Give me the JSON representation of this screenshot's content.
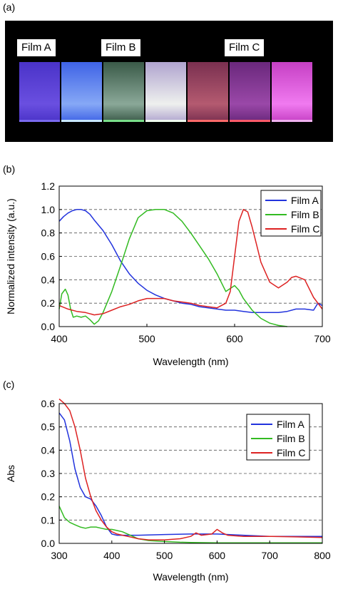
{
  "panels": {
    "a": {
      "label": "(a)"
    },
    "b": {
      "label": "(b)"
    },
    "c": {
      "label": "(c)"
    }
  },
  "photo": {
    "film_labels": [
      "Film A",
      "Film B",
      "Film C"
    ],
    "swatch_colors": [
      [
        "#4a33c8",
        "#6a4fe0"
      ],
      [
        "#3f63e6",
        "#86a8f6"
      ],
      [
        "#3a5a48",
        "#8aa898"
      ],
      [
        "#b0a4cf",
        "#eef0ee"
      ],
      [
        "#7a3050",
        "#b45a70"
      ],
      [
        "#6a287c",
        "#9a48a8"
      ],
      [
        "#c640c4",
        "#f07af0"
      ]
    ],
    "swatch_edge_colors": [
      "#7a6af0",
      "#c8e8ff",
      "#7adf8a",
      "#f0fff0",
      "#ff6a6a",
      "#ff5a6a",
      "#f0b0f0"
    ]
  },
  "chart_data": [
    {
      "type": "line",
      "xlabel": "Wavelength (nm)",
      "ylabel": "Normalized intensity (a.u.)",
      "xlim": [
        400,
        700
      ],
      "ylim": [
        0,
        1.2
      ],
      "xticks": [
        400,
        500,
        600,
        700
      ],
      "yticks": [
        0,
        0.2,
        0.4,
        0.6,
        0.8,
        1.0,
        1.2
      ],
      "ytick_labels": [
        "0.0",
        "0.2",
        "0.4",
        "0.6",
        "0.8",
        "1.0",
        "1.2"
      ],
      "grid": "horizontal dashed",
      "legend_position": "top-right",
      "series": [
        {
          "name": "Film A",
          "color": "#2233dd",
          "x": [
            400,
            405,
            410,
            415,
            420,
            425,
            430,
            435,
            440,
            450,
            460,
            470,
            480,
            490,
            500,
            510,
            520,
            530,
            540,
            550,
            560,
            570,
            580,
            590,
            600,
            610,
            620,
            630,
            640,
            650,
            660,
            670,
            680,
            690,
            695,
            700
          ],
          "y": [
            0.9,
            0.94,
            0.97,
            0.99,
            1.0,
            1.0,
            0.99,
            0.96,
            0.91,
            0.82,
            0.7,
            0.56,
            0.45,
            0.37,
            0.31,
            0.27,
            0.24,
            0.22,
            0.2,
            0.19,
            0.17,
            0.16,
            0.15,
            0.14,
            0.14,
            0.13,
            0.12,
            0.12,
            0.12,
            0.12,
            0.13,
            0.15,
            0.15,
            0.14,
            0.2,
            0.18
          ]
        },
        {
          "name": "Film B",
          "color": "#33bb22",
          "x": [
            400,
            403,
            407,
            410,
            413,
            416,
            420,
            425,
            430,
            435,
            440,
            445,
            450,
            460,
            470,
            480,
            490,
            500,
            510,
            520,
            530,
            540,
            550,
            560,
            570,
            580,
            590,
            600,
            605,
            610,
            620,
            630,
            640,
            650,
            660
          ],
          "y": [
            0.15,
            0.28,
            0.32,
            0.27,
            0.15,
            0.08,
            0.09,
            0.08,
            0.09,
            0.06,
            0.02,
            0.05,
            0.12,
            0.3,
            0.52,
            0.75,
            0.93,
            0.99,
            1.0,
            1.0,
            0.97,
            0.9,
            0.8,
            0.69,
            0.58,
            0.45,
            0.3,
            0.35,
            0.31,
            0.24,
            0.14,
            0.07,
            0.03,
            0.01,
            0.0
          ]
        },
        {
          "name": "Film C",
          "color": "#dd2222",
          "x": [
            400,
            410,
            420,
            430,
            440,
            450,
            460,
            470,
            480,
            490,
            500,
            510,
            520,
            530,
            540,
            550,
            560,
            570,
            580,
            590,
            595,
            600,
            605,
            610,
            615,
            620,
            625,
            630,
            640,
            650,
            660,
            665,
            670,
            680,
            690,
            700
          ],
          "y": [
            0.18,
            0.15,
            0.13,
            0.12,
            0.1,
            0.11,
            0.14,
            0.17,
            0.19,
            0.22,
            0.24,
            0.24,
            0.24,
            0.22,
            0.21,
            0.2,
            0.18,
            0.17,
            0.16,
            0.2,
            0.3,
            0.6,
            0.9,
            1.0,
            0.98,
            0.85,
            0.7,
            0.55,
            0.38,
            0.33,
            0.38,
            0.42,
            0.43,
            0.4,
            0.25,
            0.15
          ]
        }
      ]
    },
    {
      "type": "line",
      "xlabel": "Wavelength (nm)",
      "ylabel": "Abs",
      "xlim": [
        300,
        800
      ],
      "ylim": [
        0,
        0.6
      ],
      "xticks": [
        300,
        400,
        500,
        600,
        700,
        800
      ],
      "yticks": [
        0,
        0.1,
        0.2,
        0.3,
        0.4,
        0.5,
        0.6
      ],
      "ytick_labels": [
        "0.0",
        "0.1",
        "0.2",
        "0.3",
        "0.4",
        "0.5",
        "0.6"
      ],
      "grid": "horizontal dashed",
      "legend_position": "top-right",
      "series": [
        {
          "name": "Film A",
          "color": "#2233dd",
          "x": [
            300,
            310,
            320,
            330,
            340,
            350,
            360,
            370,
            380,
            390,
            400,
            410,
            420,
            450,
            500,
            550,
            600,
            650,
            700,
            750,
            800
          ],
          "y": [
            0.56,
            0.53,
            0.44,
            0.32,
            0.24,
            0.2,
            0.19,
            0.16,
            0.12,
            0.07,
            0.04,
            0.035,
            0.035,
            0.035,
            0.038,
            0.04,
            0.04,
            0.035,
            0.03,
            0.03,
            0.03
          ]
        },
        {
          "name": "Film B",
          "color": "#33bb22",
          "x": [
            300,
            310,
            320,
            330,
            340,
            350,
            360,
            370,
            380,
            390,
            400,
            410,
            420,
            430,
            440,
            450,
            470,
            500,
            530,
            550,
            600,
            700,
            800
          ],
          "y": [
            0.16,
            0.11,
            0.09,
            0.08,
            0.07,
            0.065,
            0.07,
            0.07,
            0.065,
            0.06,
            0.06,
            0.055,
            0.05,
            0.04,
            0.03,
            0.02,
            0.012,
            0.008,
            0.005,
            0.004,
            0.002,
            0.002,
            0.002
          ]
        },
        {
          "name": "Film C",
          "color": "#dd2222",
          "x": [
            300,
            305,
            310,
            320,
            330,
            340,
            350,
            360,
            370,
            380,
            390,
            400,
            410,
            420,
            430,
            440,
            450,
            470,
            500,
            530,
            550,
            560,
            570,
            590,
            600,
            610,
            620,
            650,
            700,
            750,
            800
          ],
          "y": [
            0.62,
            0.61,
            0.6,
            0.57,
            0.5,
            0.4,
            0.28,
            0.2,
            0.14,
            0.1,
            0.07,
            0.05,
            0.04,
            0.035,
            0.03,
            0.025,
            0.02,
            0.015,
            0.015,
            0.02,
            0.03,
            0.045,
            0.035,
            0.04,
            0.06,
            0.045,
            0.035,
            0.03,
            0.03,
            0.028,
            0.025
          ]
        }
      ]
    }
  ]
}
